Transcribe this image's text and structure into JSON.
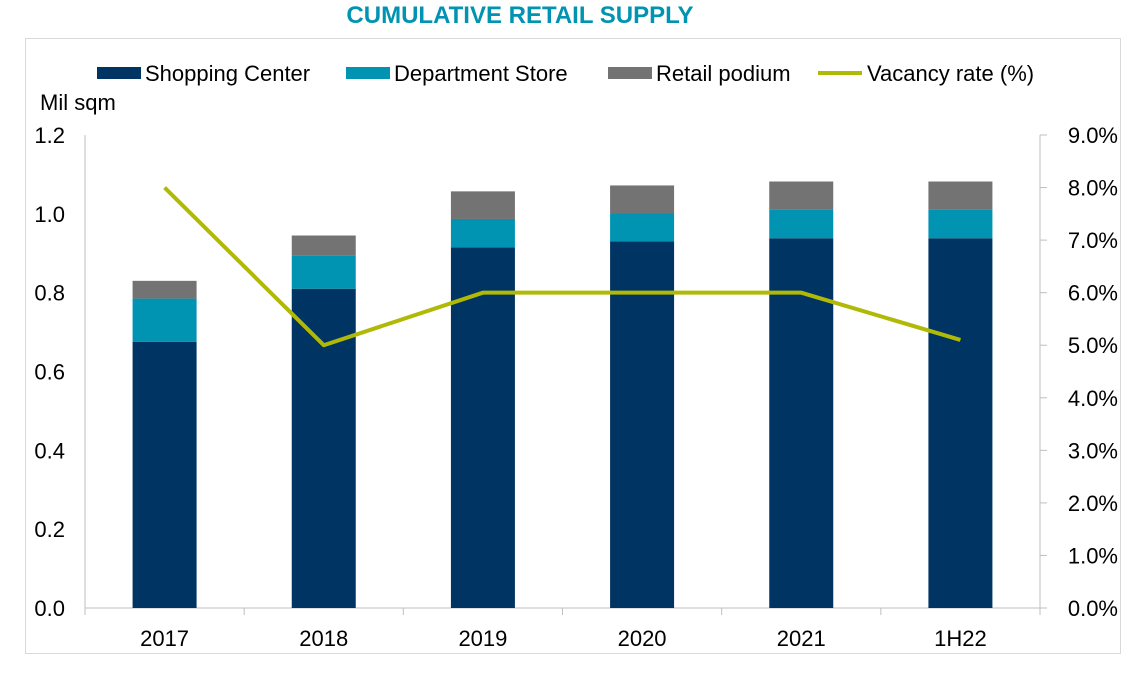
{
  "chart_data": {
    "type": "bar",
    "title": "CUMULATIVE RETAIL SUPPLY",
    "title_color": "#0093b2",
    "y_label": "Mil sqm",
    "y_left_lim": [
      0,
      1.2
    ],
    "y_left_ticks": [
      "0.0",
      "0.2",
      "0.4",
      "0.6",
      "0.8",
      "1.0",
      "1.2"
    ],
    "y_right_lim": [
      0,
      9
    ],
    "y_right_ticks": [
      "0.0%",
      "1.0%",
      "2.0%",
      "3.0%",
      "4.0%",
      "5.0%",
      "6.0%",
      "7.0%",
      "8.0%",
      "9.0%"
    ],
    "legend_position": "top",
    "categories": [
      "2017",
      "2018",
      "2019",
      "2020",
      "2021",
      "1H22"
    ],
    "series": [
      {
        "name": "Shopping Center",
        "kind": "stacked-bar",
        "color": "#003462",
        "values": [
          0.675,
          0.81,
          0.915,
          0.93,
          0.938,
          0.938
        ]
      },
      {
        "name": "Department Store",
        "kind": "stacked-bar",
        "color": "#0093b2",
        "values": [
          0.11,
          0.085,
          0.072,
          0.072,
          0.072,
          0.072
        ]
      },
      {
        "name": "Retail podium",
        "kind": "stacked-bar",
        "color": "#737373",
        "values": [
          0.045,
          0.05,
          0.07,
          0.07,
          0.072,
          0.072
        ]
      },
      {
        "name": "Vacancy rate (%)",
        "kind": "line",
        "axis": "right",
        "color": "#b1b907",
        "values": [
          8.0,
          5.0,
          6.0,
          6.0,
          6.0,
          5.1
        ]
      }
    ]
  }
}
